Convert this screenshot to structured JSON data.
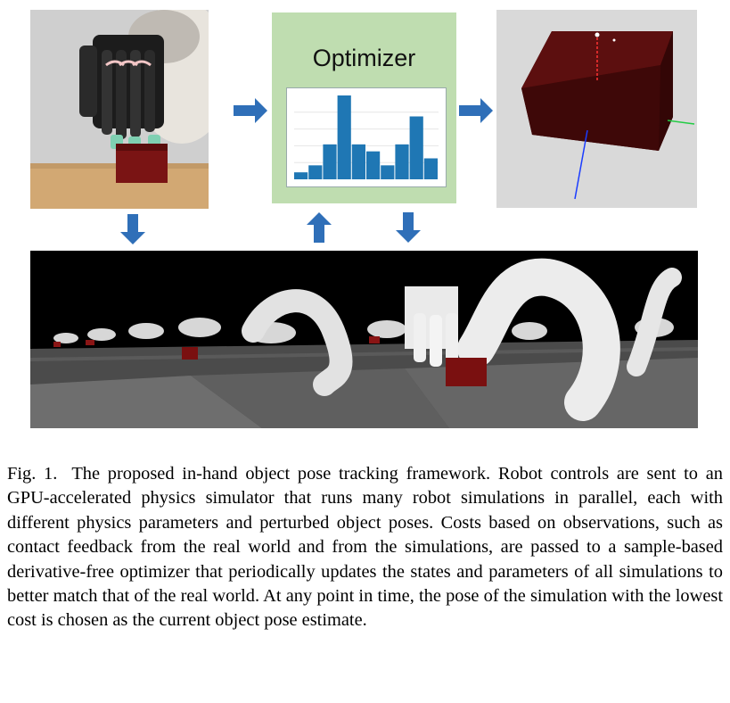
{
  "figure": {
    "optimizer_label": "Optimizer",
    "arrow_color": "#2f6fb8",
    "histogram": {
      "bar_color": "#1f77b4",
      "values": [
        1,
        2,
        5,
        12,
        5,
        4,
        2,
        5,
        9,
        3
      ]
    }
  },
  "caption": {
    "prefix": "Fig. 1.",
    "text": "The proposed in-hand object pose tracking framework. Robot controls are sent to an GPU-accelerated physics simulator that runs many robot simulations in parallel, each with different physics parameters and perturbed object poses. Costs based on observations, such as contact feedback from the real world and from the simulations, are passed to a sample-based derivative-free optimizer that periodically updates the states and parameters of all simulations to better match that of the real world. At any point in time, the pose of the simulation with the lowest cost is chosen as the current object pose estimate."
  }
}
